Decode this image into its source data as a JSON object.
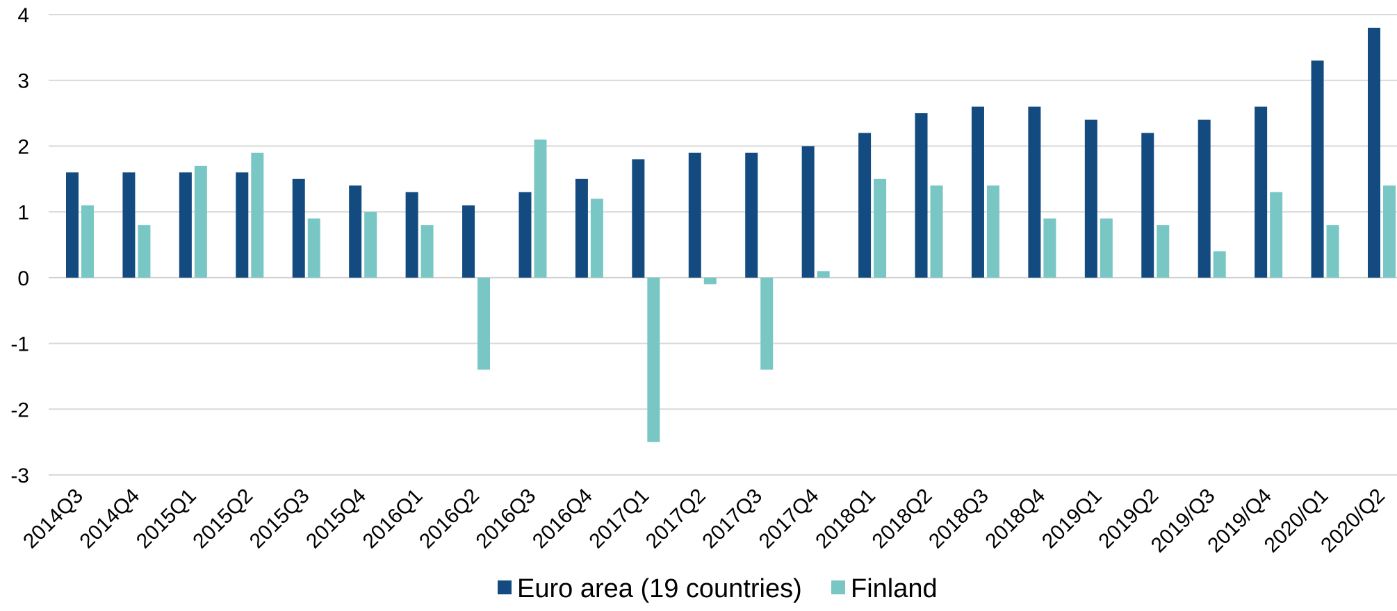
{
  "chart_data": {
    "type": "bar",
    "categories": [
      "2014Q3",
      "2014Q4",
      "2015Q1",
      "2015Q2",
      "2015Q3",
      "2015Q4",
      "2016Q1",
      "2016Q2",
      "2016Q3",
      "2016Q4",
      "2017Q1",
      "2017Q2",
      "2017Q3",
      "2017Q4",
      "2018Q1",
      "2018Q2",
      "2018Q3",
      "2018Q4",
      "2019Q1",
      "2019Q2",
      "2019/Q3",
      "2019/Q4",
      "2020/Q1",
      "2020/Q2"
    ],
    "series": [
      {
        "name": "Euro area (19 countries)",
        "color": "#134b80",
        "values": [
          1.6,
          1.6,
          1.6,
          1.6,
          1.5,
          1.4,
          1.3,
          1.1,
          1.3,
          1.5,
          1.8,
          1.9,
          1.9,
          2.0,
          2.2,
          2.5,
          2.6,
          2.6,
          2.4,
          2.2,
          2.4,
          2.6,
          3.3,
          3.8
        ]
      },
      {
        "name": "Finland",
        "color": "#79c7c5",
        "values": [
          1.1,
          0.8,
          1.7,
          1.9,
          0.9,
          1.0,
          0.8,
          -1.4,
          2.1,
          1.2,
          -2.5,
          -0.1,
          -1.4,
          0.1,
          1.5,
          1.4,
          1.4,
          0.9,
          0.9,
          0.8,
          0.4,
          1.3,
          0.8,
          1.4
        ]
      }
    ],
    "yticks": [
      "4",
      "3",
      "2",
      "1",
      "0",
      "-1",
      "-2",
      "-3"
    ],
    "ylim": [
      -3,
      4
    ],
    "grid": true,
    "legend_position": "bottom-center",
    "title": "",
    "xlabel": "",
    "ylabel": ""
  }
}
